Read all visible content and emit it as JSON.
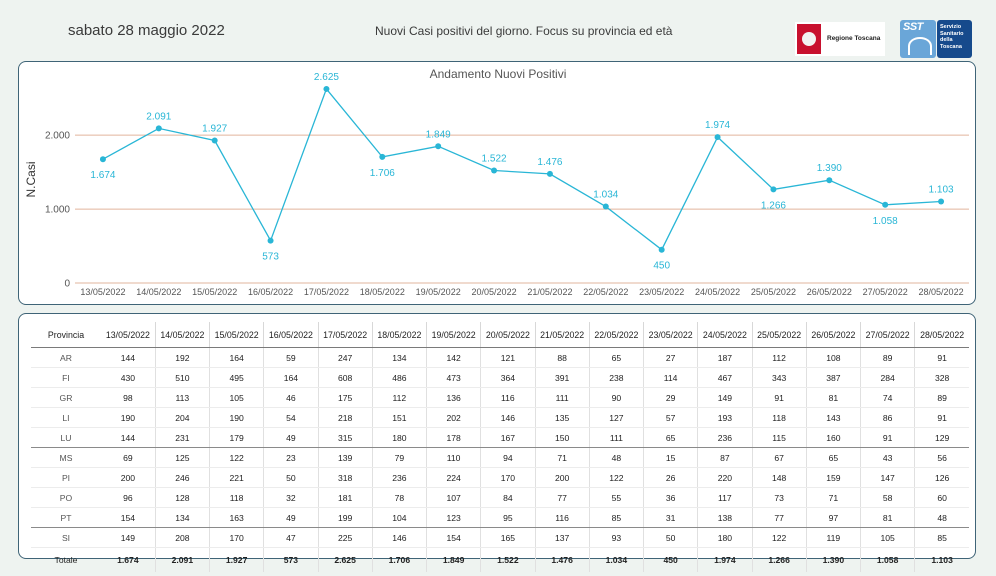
{
  "header": {
    "date": "sabato 28 maggio 2022",
    "subtitle": "Nuovi Casi positivi del giorno. Focus su provincia ed età",
    "region_logo_text": "Regione Toscana",
    "sst_logo_text": "SST",
    "sst_logo_lines": [
      "Servizio",
      "Sanitario",
      "della",
      "Toscana"
    ]
  },
  "colors": {
    "line": "#29b6d6",
    "gridline": "#e2b49c",
    "card_border": "#3f6477",
    "background": "#eef3f0"
  },
  "chart_data": {
    "type": "line",
    "title": "Andamento Nuovi Positivi",
    "ylabel": "N.Casi",
    "xlabel": "",
    "ylim": [
      0,
      2800
    ],
    "yticks": [
      0,
      1000,
      2000
    ],
    "ytick_labels": [
      "0",
      "1.000",
      "2.000"
    ],
    "categories": [
      "13/05/2022",
      "14/05/2022",
      "15/05/2022",
      "16/05/2022",
      "17/05/2022",
      "18/05/2022",
      "19/05/2022",
      "20/05/2022",
      "21/05/2022",
      "22/05/2022",
      "23/05/2022",
      "24/05/2022",
      "25/05/2022",
      "26/05/2022",
      "27/05/2022",
      "28/05/2022"
    ],
    "values": [
      1674,
      2091,
      1927,
      573,
      2625,
      1706,
      1849,
      1522,
      1476,
      1034,
      450,
      1974,
      1266,
      1390,
      1058,
      1103
    ],
    "value_labels": [
      "1.674",
      "2.091",
      "1.927",
      "573",
      "2.625",
      "1.706",
      "1.849",
      "1.522",
      "1.476",
      "1.034",
      "450",
      "1.974",
      "1.266",
      "1.390",
      "1.058",
      "1.103"
    ],
    "label_positions": [
      "below",
      "above",
      "above",
      "below",
      "above",
      "below",
      "above",
      "above",
      "above",
      "above",
      "below",
      "above",
      "below",
      "above",
      "below",
      "above"
    ],
    "grid": true
  },
  "table": {
    "header_label": "Provincia",
    "dates": [
      "13/05/2022",
      "14/05/2022",
      "15/05/2022",
      "16/05/2022",
      "17/05/2022",
      "18/05/2022",
      "19/05/2022",
      "20/05/2022",
      "21/05/2022",
      "22/05/2022",
      "23/05/2022",
      "24/05/2022",
      "25/05/2022",
      "26/05/2022",
      "27/05/2022",
      "28/05/2022"
    ],
    "rows": [
      {
        "name": "AR",
        "values": [
          "144",
          "192",
          "164",
          "59",
          "247",
          "134",
          "142",
          "121",
          "88",
          "65",
          "27",
          "187",
          "112",
          "108",
          "89",
          "91"
        ]
      },
      {
        "name": "FI",
        "values": [
          "430",
          "510",
          "495",
          "164",
          "608",
          "486",
          "473",
          "364",
          "391",
          "238",
          "114",
          "467",
          "343",
          "387",
          "284",
          "328"
        ]
      },
      {
        "name": "GR",
        "values": [
          "98",
          "113",
          "105",
          "46",
          "175",
          "112",
          "136",
          "116",
          "111",
          "90",
          "29",
          "149",
          "91",
          "81",
          "74",
          "89"
        ]
      },
      {
        "name": "LI",
        "values": [
          "190",
          "204",
          "190",
          "54",
          "218",
          "151",
          "202",
          "146",
          "135",
          "127",
          "57",
          "193",
          "118",
          "143",
          "86",
          "91"
        ]
      },
      {
        "name": "LU",
        "values": [
          "144",
          "231",
          "179",
          "49",
          "315",
          "180",
          "178",
          "167",
          "150",
          "111",
          "65",
          "236",
          "115",
          "160",
          "91",
          "129"
        ]
      },
      {
        "name": "MS",
        "values": [
          "69",
          "125",
          "122",
          "23",
          "139",
          "79",
          "110",
          "94",
          "71",
          "48",
          "15",
          "87",
          "67",
          "65",
          "43",
          "56"
        ]
      },
      {
        "name": "PI",
        "values": [
          "200",
          "246",
          "221",
          "50",
          "318",
          "236",
          "224",
          "170",
          "200",
          "122",
          "26",
          "220",
          "148",
          "159",
          "147",
          "126"
        ]
      },
      {
        "name": "PO",
        "values": [
          "96",
          "128",
          "118",
          "32",
          "181",
          "78",
          "107",
          "84",
          "77",
          "55",
          "36",
          "117",
          "73",
          "71",
          "58",
          "60"
        ]
      },
      {
        "name": "PT",
        "values": [
          "154",
          "134",
          "163",
          "49",
          "199",
          "104",
          "123",
          "95",
          "116",
          "85",
          "31",
          "138",
          "77",
          "97",
          "81",
          "48"
        ]
      },
      {
        "name": "SI",
        "values": [
          "149",
          "208",
          "170",
          "47",
          "225",
          "146",
          "154",
          "165",
          "137",
          "93",
          "50",
          "180",
          "122",
          "119",
          "105",
          "85"
        ]
      }
    ],
    "total": {
      "name": "Totale",
      "values": [
        "1.674",
        "2.091",
        "1.927",
        "573",
        "2.625",
        "1.706",
        "1.849",
        "1.522",
        "1.476",
        "1.034",
        "450",
        "1.974",
        "1.266",
        "1.390",
        "1.058",
        "1.103"
      ]
    }
  }
}
